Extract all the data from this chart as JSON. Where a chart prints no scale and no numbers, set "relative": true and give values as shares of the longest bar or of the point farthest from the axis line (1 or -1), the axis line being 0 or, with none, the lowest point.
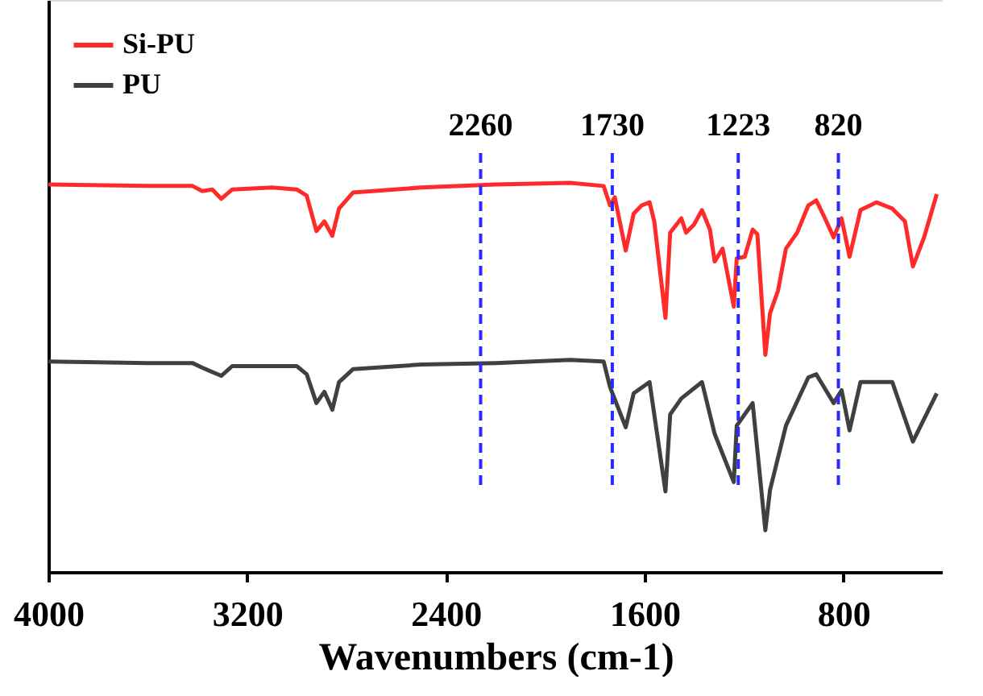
{
  "chart_data": {
    "type": "line",
    "xlabel": "Wavenumbers (cm-1)",
    "relative": true,
    "xlim": [
      4000,
      400
    ],
    "xticks": [
      4000,
      3200,
      2400,
      1600,
      800
    ],
    "grid": false,
    "legend": "top left",
    "tick_labels": "x",
    "series": [
      {
        "name": "Si-PU",
        "color": "#ff2a2a",
        "x": [
          4000,
          3600,
          3420,
          3380,
          3340,
          3304,
          3260,
          3100,
          3000,
          2960,
          2921,
          2889,
          2857,
          2830,
          2774,
          2500,
          2200,
          1900,
          1765,
          1739,
          1720,
          1676,
          1644,
          1612,
          1580,
          1561,
          1516,
          1497,
          1452,
          1433,
          1401,
          1369,
          1337,
          1318,
          1286,
          1241,
          1229,
          1197,
          1165,
          1146,
          1114,
          1095,
          1063,
          1031,
          986,
          941,
          909,
          877,
          839,
          807,
          775,
          731,
          667,
          603,
          552,
          520,
          475,
          424
        ],
        "values": [
          0.996,
          0.992,
          0.992,
          0.979,
          0.983,
          0.959,
          0.983,
          0.988,
          0.983,
          0.967,
          0.876,
          0.901,
          0.864,
          0.934,
          0.975,
          0.988,
          0.996,
          1.0,
          0.992,
          0.942,
          0.963,
          0.826,
          0.921,
          0.942,
          0.95,
          0.901,
          0.653,
          0.872,
          0.909,
          0.872,
          0.893,
          0.93,
          0.88,
          0.798,
          0.831,
          0.682,
          0.806,
          0.81,
          0.88,
          0.868,
          0.558,
          0.665,
          0.723,
          0.831,
          0.872,
          0.942,
          0.955,
          0.913,
          0.86,
          0.909,
          0.81,
          0.93,
          0.95,
          0.934,
          0.901,
          0.785,
          0.86,
          0.971
        ]
      },
      {
        "name": "PU",
        "color": "#404040",
        "x": [
          4000,
          3600,
          3420,
          3380,
          3304,
          3260,
          3000,
          2960,
          2921,
          2889,
          2857,
          2830,
          2774,
          2500,
          2200,
          1900,
          1765,
          1739,
          1676,
          1644,
          1580,
          1516,
          1497,
          1452,
          1369,
          1318,
          1241,
          1229,
          1165,
          1114,
          1095,
          1031,
          941,
          909,
          839,
          807,
          775,
          731,
          603,
          520,
          424
        ],
        "values": [
          0.541,
          0.537,
          0.537,
          0.525,
          0.504,
          0.529,
          0.529,
          0.508,
          0.434,
          0.463,
          0.417,
          0.488,
          0.521,
          0.533,
          0.537,
          0.545,
          0.541,
          0.475,
          0.372,
          0.459,
          0.488,
          0.207,
          0.405,
          0.446,
          0.488,
          0.355,
          0.231,
          0.376,
          0.434,
          0.107,
          0.211,
          0.376,
          0.5,
          0.508,
          0.434,
          0.467,
          0.364,
          0.488,
          0.488,
          0.335,
          0.459
        ]
      }
    ],
    "ref_lines": [
      {
        "axis": "x",
        "value": 2260,
        "label": "2260",
        "color": "#2b2bff",
        "line_style": "dashed"
      },
      {
        "axis": "x",
        "value": 1730,
        "label": "1730",
        "color": "#2b2bff",
        "line_style": "dashed"
      },
      {
        "axis": "x",
        "value": 1223,
        "label": "1223",
        "color": "#2b2bff",
        "line_style": "dashed"
      },
      {
        "axis": "x",
        "value": 820,
        "label": "820",
        "color": "#2b2bff",
        "line_style": "dashed"
      }
    ]
  }
}
